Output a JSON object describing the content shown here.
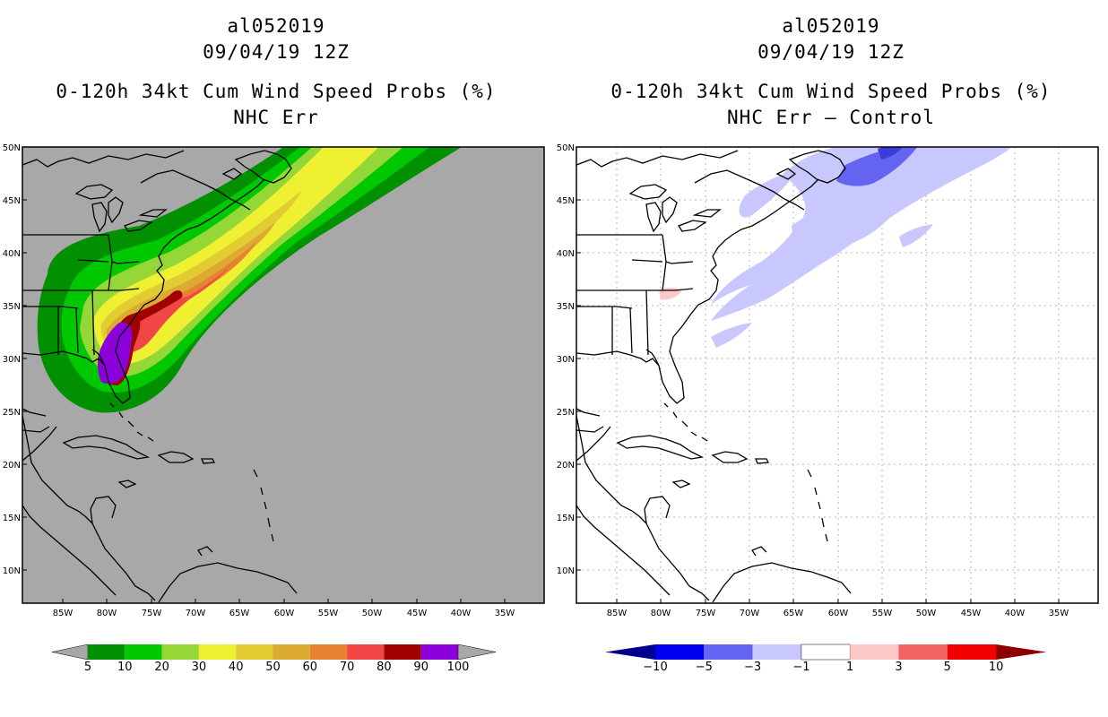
{
  "left_panel": {
    "title": {
      "line1": "al052019",
      "line2": "09/04/19 12Z",
      "line3": "0-120h 34kt Cum Wind Speed Probs (%)",
      "line4": "NHC Err"
    },
    "background": "#a8a8a8",
    "colorbar": {
      "labels": [
        "5",
        "10",
        "20",
        "30",
        "40",
        "50",
        "60",
        "70",
        "80",
        "90",
        "100"
      ],
      "colors": [
        "#009000",
        "#00c800",
        "#96d738",
        "#f0f032",
        "#e1cd32",
        "#dcaa32",
        "#e68232",
        "#f04646",
        "#a00000",
        "#8c00dc"
      ],
      "end_color": "#a8a8a8"
    }
  },
  "right_panel": {
    "title": {
      "line1": "al052019",
      "line2": "09/04/19 12Z",
      "line3": "0-120h 34kt Cum Wind Speed Probs (%)",
      "line4": "NHC Err – Control"
    },
    "background": "#ffffff",
    "colorbar": {
      "labels": [
        "-10",
        "-5",
        "-3",
        "-1",
        "1",
        "3",
        "5",
        "10"
      ],
      "colors": [
        "#0000f0",
        "#6464f0",
        "#c8c8ff",
        "#ffffff",
        "#ffc8c8",
        "#f06464",
        "#f00000"
      ],
      "end_low": "#00008c",
      "end_high": "#8c0000"
    }
  },
  "map": {
    "lat_labels": [
      "50N",
      "45N",
      "40N",
      "35N",
      "30N",
      "25N",
      "20N",
      "15N",
      "10N"
    ],
    "lon_labels": [
      "85W",
      "80W",
      "75W",
      "70W",
      "65W",
      "60W",
      "55W",
      "50W",
      "45W",
      "40W",
      "35W"
    ]
  }
}
